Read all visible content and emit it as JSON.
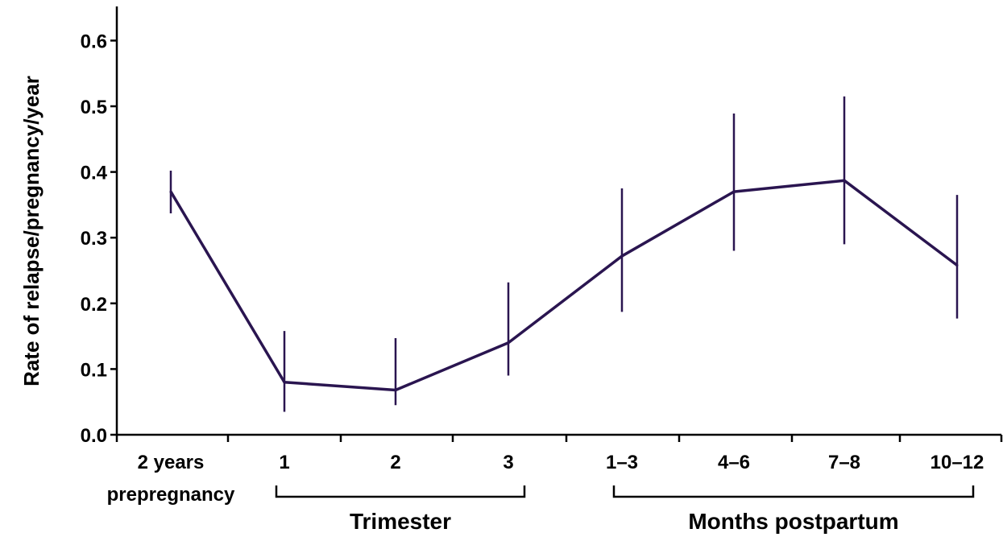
{
  "chart_data": {
    "type": "line",
    "title": "",
    "xlabel": "",
    "ylabel": "Rate of relapse/pregnancy/year",
    "ylim": [
      0.0,
      0.65
    ],
    "yticks": [
      "0.0",
      "0.1",
      "0.2",
      "0.3",
      "0.4",
      "0.5",
      "0.6"
    ],
    "grid": false,
    "legend": "none",
    "categories": [
      [
        "2 years",
        "prepregnancy"
      ],
      [
        "1"
      ],
      [
        "2"
      ],
      [
        "3"
      ],
      [
        "1–3"
      ],
      [
        "4–6"
      ],
      [
        "7–8"
      ],
      [
        "10–12"
      ]
    ],
    "series": [
      {
        "values": [
          0.37,
          0.08,
          0.068,
          0.14,
          0.272,
          0.37,
          0.387,
          0.258
        ],
        "error_low": [
          0.337,
          0.035,
          0.045,
          0.09,
          0.187,
          0.28,
          0.29,
          0.177
        ],
        "error_high": [
          0.402,
          0.158,
          0.147,
          0.232,
          0.375,
          0.489,
          0.515,
          0.365
        ],
        "color": "#2a1550"
      }
    ],
    "groups": [
      {
        "label": "Trimester",
        "from": 1,
        "to": 3
      },
      {
        "label": "Months postpartum",
        "from": 4,
        "to": 7
      }
    ]
  }
}
